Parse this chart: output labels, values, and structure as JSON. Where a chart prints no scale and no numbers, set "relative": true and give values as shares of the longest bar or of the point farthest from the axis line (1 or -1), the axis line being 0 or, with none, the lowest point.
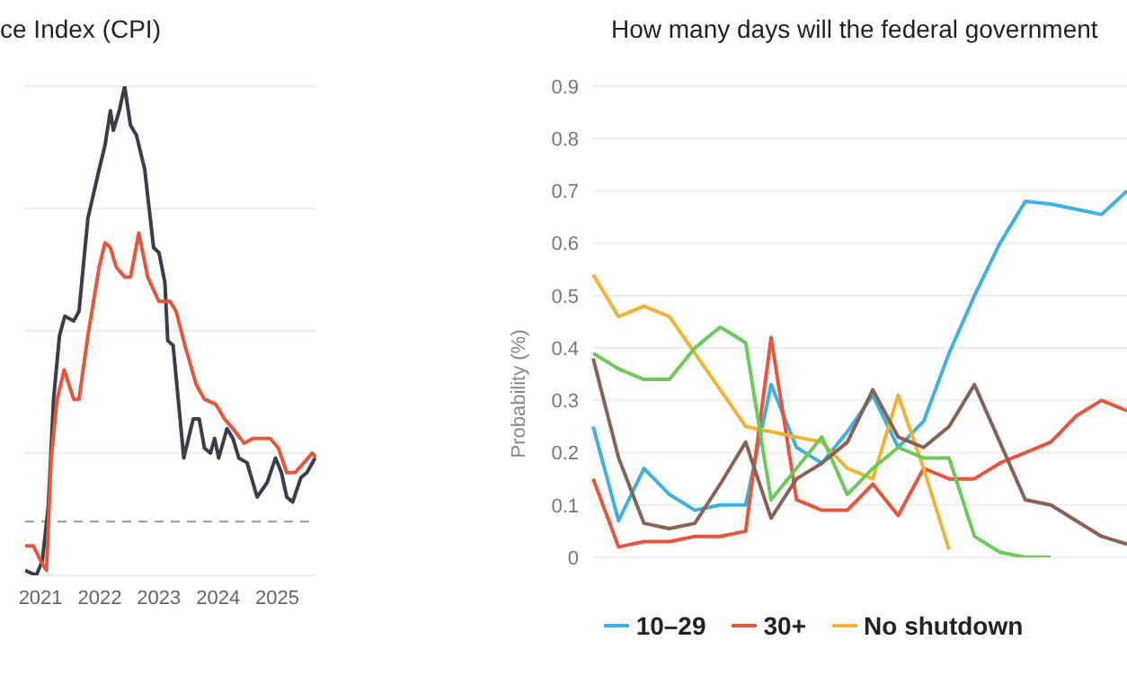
{
  "chart_data": [
    {
      "type": "line",
      "title": "ce Index (CPI)",
      "relative": true,
      "xlim": [
        2020.74,
        2025.66
      ],
      "xticks": [
        2021,
        2022,
        2023,
        2024,
        2025
      ],
      "grid": "y",
      "legend": false,
      "marker": "none",
      "line_style": "solid",
      "ref_lines": [
        {
          "axis": "y",
          "value": 0.11,
          "label": null,
          "color": "#999999",
          "line_style": "dashed"
        }
      ],
      "series": [
        {
          "color": "#3a3d4a",
          "x": [
            2020.74,
            2020.93,
            2021.03,
            2021.13,
            2021.22,
            2021.32,
            2021.41,
            2021.56,
            2021.65,
            2021.8,
            2021.99,
            2022.09,
            2022.18,
            2022.23,
            2022.33,
            2022.42,
            2022.52,
            2022.62,
            2022.76,
            2022.91,
            2023.0,
            2023.1,
            2023.15,
            2023.24,
            2023.42,
            2023.58,
            2023.68,
            2023.77,
            2023.87,
            2023.94,
            2024.01,
            2024.15,
            2024.25,
            2024.35,
            2024.49,
            2024.66,
            2024.83,
            2024.97,
            2025.07,
            2025.16,
            2025.26,
            2025.4,
            2025.5,
            2025.64
          ],
          "values": [
            0.01,
            0,
            0.03,
            0.14,
            0.36,
            0.49,
            0.53,
            0.52,
            0.54,
            0.73,
            0.83,
            0.88,
            0.95,
            0.91,
            0.95,
            1,
            0.92,
            0.9,
            0.83,
            0.67,
            0.66,
            0.6,
            0.48,
            0.47,
            0.24,
            0.32,
            0.32,
            0.26,
            0.25,
            0.28,
            0.24,
            0.3,
            0.28,
            0.24,
            0.23,
            0.16,
            0.19,
            0.24,
            0.21,
            0.16,
            0.15,
            0.2,
            0.21,
            0.24
          ]
        },
        {
          "color": "#e8553d",
          "x": [
            2020.74,
            2020.88,
            2021.0,
            2021.1,
            2021.18,
            2021.28,
            2021.4,
            2021.56,
            2021.65,
            2021.8,
            2021.99,
            2022.09,
            2022.18,
            2022.28,
            2022.42,
            2022.52,
            2022.66,
            2022.81,
            2023.0,
            2023.19,
            2023.29,
            2023.44,
            2023.63,
            2023.77,
            2023.96,
            2024.11,
            2024.25,
            2024.44,
            2024.59,
            2024.88,
            2025.02,
            2025.16,
            2025.3,
            2025.45,
            2025.59,
            2025.66
          ],
          "values": [
            0.06,
            0.06,
            0.03,
            0.01,
            0.24,
            0.36,
            0.42,
            0.36,
            0.36,
            0.49,
            0.63,
            0.68,
            0.67,
            0.63,
            0.61,
            0.61,
            0.7,
            0.61,
            0.56,
            0.56,
            0.54,
            0.47,
            0.39,
            0.36,
            0.35,
            0.32,
            0.3,
            0.27,
            0.28,
            0.28,
            0.26,
            0.21,
            0.21,
            0.23,
            0.25,
            0.24
          ]
        }
      ]
    },
    {
      "type": "line",
      "title": "How many days will the federal government",
      "ylabel": "Probability (%)",
      "ylim": [
        0,
        0.9
      ],
      "yticks": [
        0,
        0.1,
        0.2,
        0.3,
        0.4,
        0.5,
        0.6,
        0.7,
        0.8,
        0.9
      ],
      "grid": "y",
      "legend": "bottom",
      "marker": "none",
      "line_style": "solid",
      "categories": [
        null,
        null,
        null,
        null,
        null,
        null,
        null,
        null,
        null,
        null,
        null,
        null,
        null,
        null,
        null,
        null,
        null,
        null,
        null,
        null,
        null,
        null
      ],
      "series": [
        {
          "name": "10–29",
          "color": "#3fb0e0",
          "values": [
            0.25,
            0.07,
            0.17,
            0.12,
            0.09,
            0.1,
            0.1,
            0.33,
            0.21,
            0.18,
            0.24,
            0.31,
            0.21,
            0.26,
            0.39,
            0.5,
            0.6,
            0.68,
            0.675,
            0.665,
            0.655,
            0.7
          ]
        },
        {
          "name": "30+",
          "color": "#e8553d",
          "values": [
            0.15,
            0.02,
            0.03,
            0.03,
            0.04,
            0.04,
            0.05,
            0.42,
            0.11,
            0.09,
            0.09,
            0.14,
            0.08,
            0.17,
            0.15,
            0.15,
            0.18,
            0.2,
            0.22,
            0.27,
            0.3,
            0.28
          ]
        },
        {
          "name": "No shutdown",
          "color": "#f2b233",
          "values": [
            0.54,
            0.46,
            0.48,
            0.46,
            0.39,
            0.32,
            0.25,
            0.24,
            0.23,
            0.22,
            0.17,
            0.15,
            0.31,
            0.17,
            0.015,
            null,
            null,
            null,
            null,
            null,
            null,
            null
          ]
        },
        {
          "color": "#6cc95a",
          "values": [
            0.39,
            0.36,
            0.34,
            0.34,
            0.4,
            0.44,
            0.41,
            0.11,
            0.17,
            0.23,
            0.12,
            0.17,
            0.21,
            0.19,
            0.19,
            0.04,
            0.01,
            0,
            0,
            null,
            null,
            null
          ]
        },
        {
          "color": "#8a6254",
          "values": [
            0.38,
            0.19,
            0.065,
            0.055,
            0.065,
            0.14,
            0.22,
            0.075,
            0.15,
            0.18,
            0.22,
            0.32,
            0.23,
            0.21,
            0.25,
            0.33,
            0.22,
            0.11,
            0.1,
            0.07,
            0.04,
            0.025
          ]
        }
      ]
    }
  ]
}
